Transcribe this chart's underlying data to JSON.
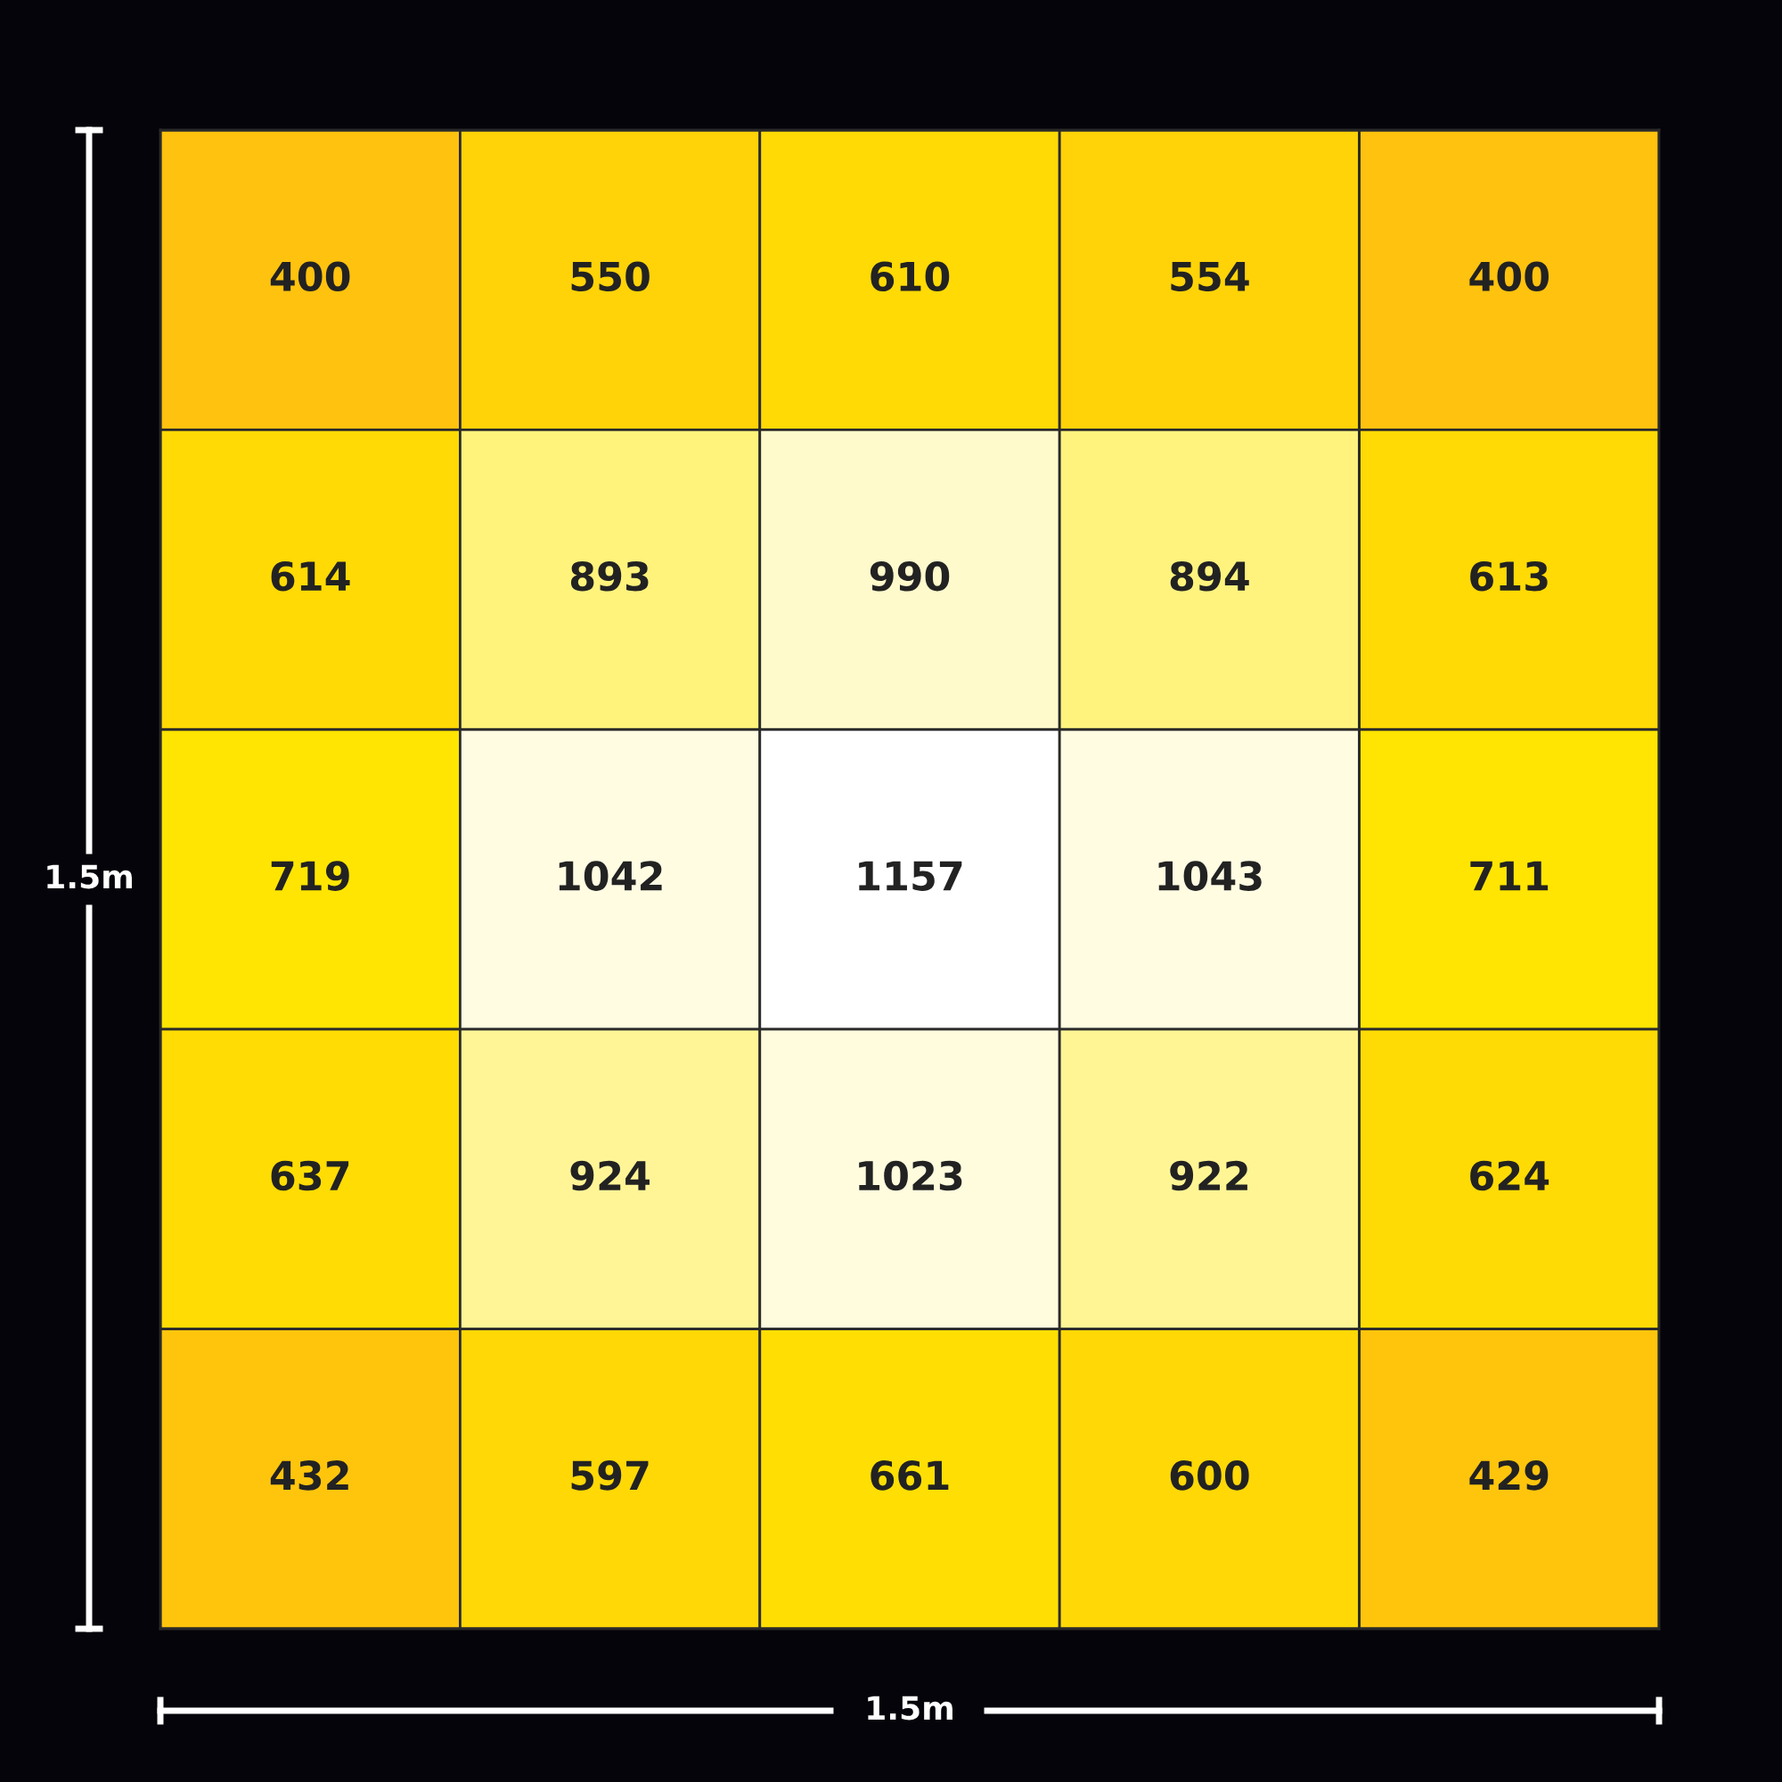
{
  "chart_data": {
    "type": "heatmap",
    "xlabel": "1.5m",
    "ylabel": "1.5m",
    "categories": [
      null,
      null,
      null,
      null,
      null
    ],
    "y_categories": [
      null,
      null,
      null,
      null,
      null
    ],
    "cells": [
      [
        400,
        550,
        610,
        554,
        400
      ],
      [
        614,
        893,
        990,
        894,
        613
      ],
      [
        719,
        1042,
        1157,
        1043,
        711
      ],
      [
        637,
        924,
        1023,
        922,
        624
      ],
      [
        432,
        597,
        661,
        600,
        429
      ]
    ],
    "data_labels": true
  }
}
